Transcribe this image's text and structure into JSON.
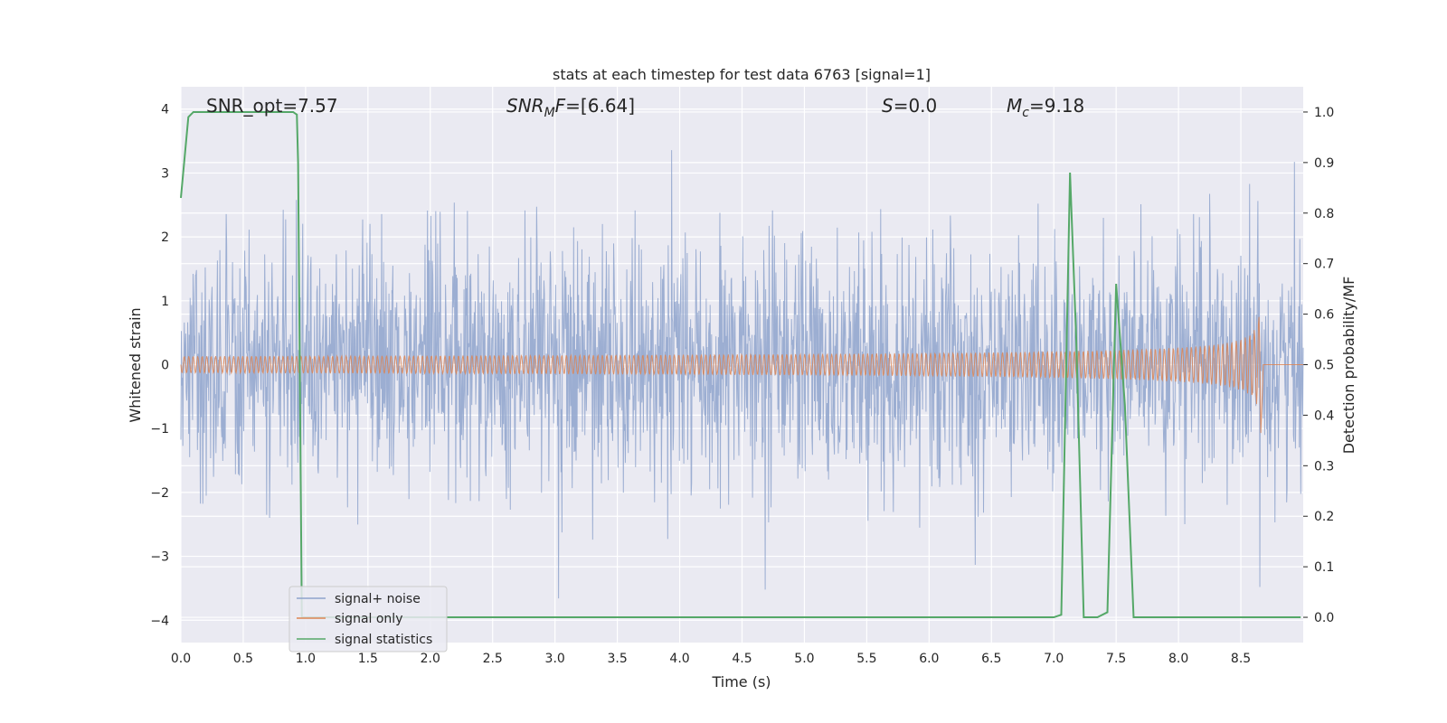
{
  "chart_data": {
    "type": "line",
    "title": "stats at each timestep for test data 6763 [signal=1]",
    "xlabel": "Time (s)",
    "ylabel": "Whitened strain",
    "ylabel_right": "Detection probability/MF",
    "xlim": [
      0.0,
      9.0
    ],
    "ylim": [
      -4.35,
      4.35
    ],
    "ylim_right": [
      -0.05,
      1.05
    ],
    "xticks": [
      "0.0",
      "0.5",
      "1.0",
      "1.5",
      "2.0",
      "2.5",
      "3.0",
      "3.5",
      "4.0",
      "4.5",
      "5.0",
      "5.5",
      "6.0",
      "6.5",
      "7.0",
      "7.5",
      "8.0",
      "8.5"
    ],
    "yticks": [
      "4",
      "3",
      "2",
      "1",
      "0",
      "−1",
      "−2",
      "−3",
      "−4"
    ],
    "yticks_right": [
      "1.0",
      "0.9",
      "0.8",
      "0.7",
      "0.6",
      "0.5",
      "0.4",
      "0.3",
      "0.2",
      "0.1",
      "0.0"
    ],
    "grid": true,
    "legend_position": "lower-left",
    "annotations": {
      "snr_opt": "SNR_opt=7.57",
      "snr_mf_label": "SNR",
      "snr_mf_sub": "M",
      "snr_mf_suffix": "F",
      "snr_mf_value": "=[6.64]",
      "s_label": "S",
      "s_value": "=0.0",
      "mc_label": "M",
      "mc_sub": "c",
      "mc_value": "=9.18"
    },
    "series": [
      {
        "name": "signal+ noise",
        "color": "#8ea3cc",
        "axis": "left",
        "kind": "noise",
        "x_range": [
          0.0,
          9.0
        ],
        "typical_amplitude": 1.6,
        "max": 3.95,
        "min": -4.05
      },
      {
        "name": "signal only",
        "color": "#dd8452",
        "axis": "left",
        "kind": "chirp",
        "x_range": [
          0.0,
          8.66
        ],
        "merger_time": 8.66,
        "peak_amplitude": 1.25
      },
      {
        "name": "signal statistics",
        "color": "#55a868",
        "axis": "right",
        "kind": "line",
        "x": [
          0.0,
          0.06,
          0.1,
          0.5,
          0.9,
          0.93,
          0.94,
          0.97,
          1.05,
          6.9,
          7.0,
          7.06,
          7.13,
          7.18,
          7.24,
          7.35,
          7.43,
          7.5,
          7.57,
          7.64,
          7.7,
          8.98
        ],
        "y": [
          0.83,
          0.99,
          1.0,
          1.0,
          1.0,
          0.995,
          0.9,
          0.0,
          0.0,
          0.0,
          0.0,
          0.005,
          0.88,
          0.55,
          0.0,
          0.0,
          0.01,
          0.66,
          0.42,
          0.0,
          0.0,
          0.0
        ]
      }
    ]
  }
}
